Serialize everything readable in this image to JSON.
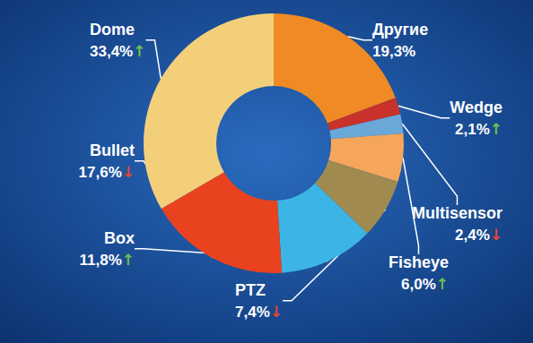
{
  "chart_data": {
    "type": "donut",
    "categories": [
      "Другие",
      "Wedge",
      "Multisensor",
      "Fisheye",
      "PTZ",
      "Box",
      "Bullet",
      "Dome"
    ],
    "values": [
      19.3,
      2.1,
      2.4,
      6.0,
      7.4,
      11.8,
      17.6,
      33.4
    ],
    "value_labels": [
      "19,3%",
      "2,1%",
      "2,4%",
      "6,0%",
      "7,4%",
      "11,8%",
      "17,6%",
      "33,4%"
    ],
    "trends": [
      null,
      "↑",
      "↓",
      "↑",
      "↓",
      "↑",
      "↓",
      "↑"
    ],
    "colors": [
      "#f08a24",
      "#c8322a",
      "#6aa8d8",
      "#f5a65b",
      "#a08a50",
      "#3cb4e6",
      "#e8431e",
      "#f4cf7a"
    ],
    "data_labels": true
  }
}
